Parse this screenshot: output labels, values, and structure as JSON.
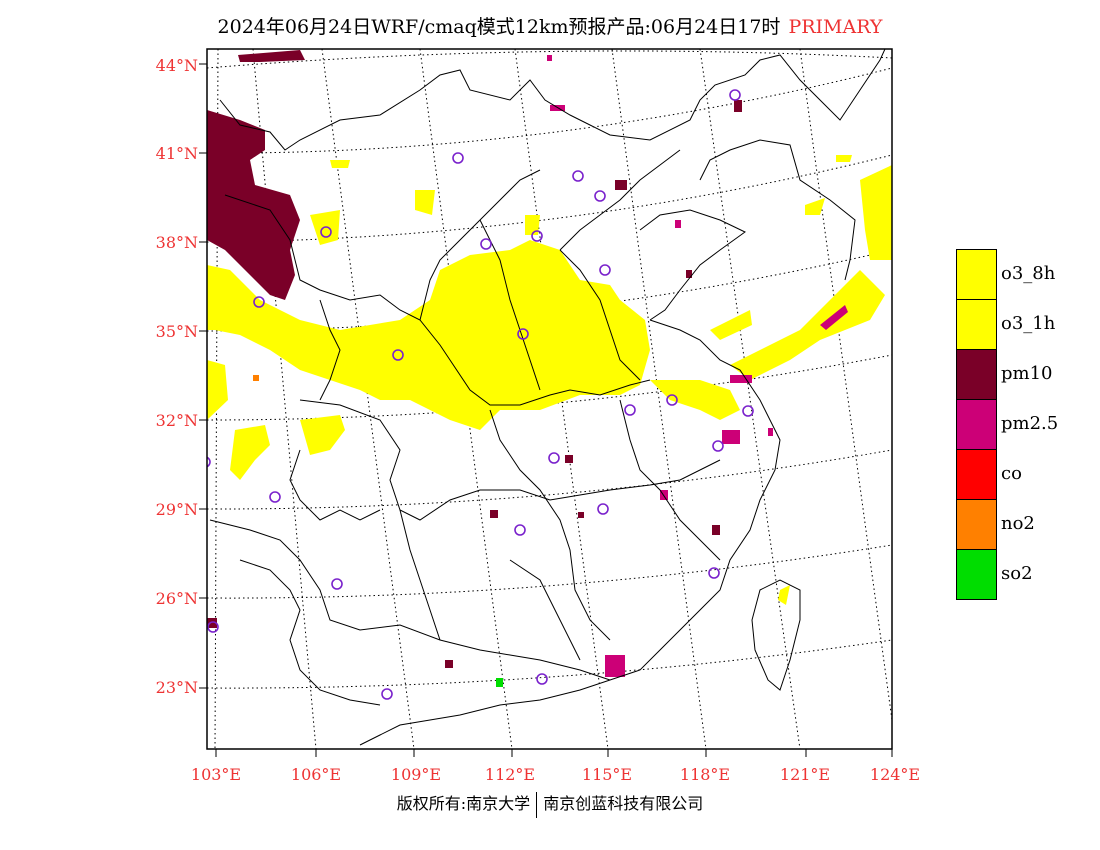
{
  "title": {
    "main": "2024年06月24日WRF/cmaq模式12km预报产品:06月24日17时",
    "tag": "PRIMARY"
  },
  "footer": {
    "left": "版权所有:南京大学",
    "right": "南京创蓝科技有限公司"
  },
  "axes": {
    "lat_labels": [
      "44°N",
      "41°N",
      "38°N",
      "35°N",
      "32°N",
      "29°N",
      "26°N",
      "23°N"
    ],
    "lon_labels": [
      "103°E",
      "106°E",
      "109°E",
      "112°E",
      "115°E",
      "118°E",
      "121°E",
      "124°E"
    ]
  },
  "legend": [
    {
      "label": "o3_8h",
      "color": "#ffff00"
    },
    {
      "label": "o3_1h",
      "color": "#ffff00"
    },
    {
      "label": "pm10",
      "color": "#7a0028"
    },
    {
      "label": "pm2.5",
      "color": "#cc0077"
    },
    {
      "label": "co",
      "color": "#ff0000"
    },
    {
      "label": "no2",
      "color": "#ff8000"
    },
    {
      "label": "so2",
      "color": "#00dd00"
    }
  ]
}
